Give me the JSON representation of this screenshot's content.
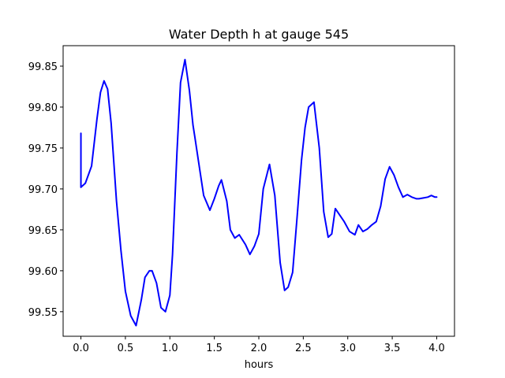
{
  "chart_data": {
    "type": "line",
    "title": "Water Depth h at gauge 545",
    "xlabel": "hours",
    "ylabel": "",
    "xlim": [
      -0.2,
      4.2
    ],
    "ylim": [
      99.52,
      99.875
    ],
    "xticks": [
      0.0,
      0.5,
      1.0,
      1.5,
      2.0,
      2.5,
      3.0,
      3.5,
      4.0
    ],
    "xtick_labels": [
      "0.0",
      "0.5",
      "1.0",
      "1.5",
      "2.0",
      "2.5",
      "3.0",
      "3.5",
      "4.0"
    ],
    "yticks": [
      99.55,
      99.6,
      99.65,
      99.7,
      99.75,
      99.8,
      99.85
    ],
    "ytick_labels": [
      "99.55",
      "99.60",
      "99.65",
      "99.70",
      "99.75",
      "99.80",
      "99.85"
    ],
    "grid": false,
    "line_color": "#0000ff",
    "series": [
      {
        "name": "",
        "x": [
          0.0,
          0.0,
          0.05,
          0.12,
          0.18,
          0.22,
          0.26,
          0.3,
          0.34,
          0.4,
          0.45,
          0.5,
          0.56,
          0.62,
          0.68,
          0.72,
          0.77,
          0.8,
          0.85,
          0.9,
          0.95,
          1.0,
          1.03,
          1.08,
          1.12,
          1.17,
          1.22,
          1.26,
          1.28,
          1.32,
          1.38,
          1.45,
          1.5,
          1.55,
          1.58,
          1.64,
          1.68,
          1.73,
          1.78,
          1.85,
          1.9,
          1.95,
          2.0,
          2.05,
          2.12,
          2.18,
          2.24,
          2.29,
          2.33,
          2.38,
          2.43,
          2.48,
          2.52,
          2.56,
          2.62,
          2.68,
          2.73,
          2.78,
          2.82,
          2.86,
          2.91,
          2.96,
          3.02,
          3.08,
          3.12,
          3.17,
          3.22,
          3.27,
          3.32,
          3.37,
          3.42,
          3.47,
          3.52,
          3.57,
          3.62,
          3.67,
          3.72,
          3.77,
          3.8,
          3.85,
          3.9,
          3.94,
          3.98,
          4.0
        ],
        "y": [
          99.768,
          99.702,
          99.707,
          99.728,
          99.785,
          99.818,
          99.832,
          99.822,
          99.78,
          99.685,
          99.625,
          99.575,
          99.545,
          99.533,
          99.565,
          99.592,
          99.6,
          99.6,
          99.585,
          99.555,
          99.55,
          99.57,
          99.62,
          99.745,
          99.83,
          99.858,
          99.82,
          99.778,
          99.764,
          99.735,
          99.692,
          99.674,
          99.688,
          99.704,
          99.711,
          99.685,
          99.65,
          99.64,
          99.644,
          99.632,
          99.62,
          99.63,
          99.645,
          99.7,
          99.73,
          99.692,
          99.61,
          99.576,
          99.58,
          99.598,
          99.665,
          99.735,
          99.775,
          99.8,
          99.806,
          99.75,
          99.672,
          99.641,
          99.645,
          99.676,
          99.668,
          99.66,
          99.648,
          99.644,
          99.656,
          99.648,
          99.651,
          99.656,
          99.66,
          99.679,
          99.712,
          99.727,
          99.717,
          99.702,
          99.69,
          99.693,
          99.69,
          99.688,
          99.688,
          99.689,
          99.69,
          99.692,
          99.69,
          99.69
        ]
      }
    ]
  }
}
